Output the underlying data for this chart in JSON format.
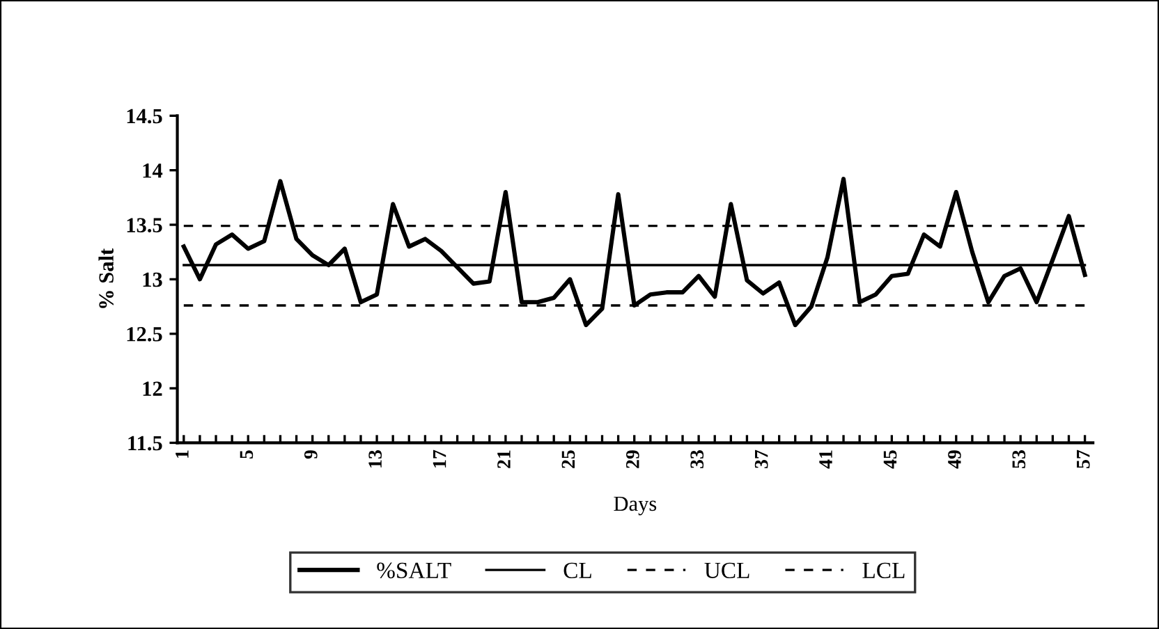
{
  "chart_data": {
    "type": "line",
    "xlabel": "Days",
    "ylabel": "% Salt",
    "categories": [
      "1",
      null,
      null,
      null,
      "5",
      null,
      null,
      null,
      "9",
      null,
      null,
      null,
      "13",
      null,
      null,
      null,
      "17",
      null,
      null,
      null,
      "21",
      null,
      null,
      null,
      "25",
      null,
      null,
      null,
      "29",
      null,
      null,
      null,
      "33",
      null,
      null,
      null,
      "37",
      null,
      null,
      null,
      "41",
      null,
      null,
      null,
      "45",
      null,
      null,
      null,
      "49",
      null,
      null,
      null,
      "53",
      null,
      null,
      null,
      "57"
    ],
    "series": [
      {
        "name": "%SALT",
        "color": "#000000",
        "line_style": "solid",
        "values": [
          13.3,
          13.0,
          13.32,
          13.41,
          13.28,
          13.35,
          13.9,
          13.37,
          13.22,
          13.13,
          13.28,
          12.79,
          12.86,
          13.69,
          13.3,
          13.37,
          13.26,
          13.11,
          12.96,
          12.98,
          13.8,
          12.79,
          12.79,
          12.83,
          13.0,
          12.58,
          12.73,
          13.78,
          12.76,
          12.86,
          12.88,
          12.88,
          13.03,
          12.84,
          13.69,
          12.99,
          12.87,
          12.97,
          12.58,
          12.75,
          13.2,
          13.92,
          12.79,
          12.86,
          13.03,
          13.05,
          13.41,
          13.3,
          13.8,
          13.25,
          12.79,
          13.03,
          13.1,
          12.79,
          13.18,
          13.58,
          13.04
        ]
      },
      {
        "name": "CL",
        "color": "#000000",
        "line_style": "solid",
        "values": [
          13.13,
          13.13,
          13.13,
          13.13,
          13.13,
          13.13,
          13.13,
          13.13,
          13.13,
          13.13,
          13.13,
          13.13,
          13.13,
          13.13,
          13.13,
          13.13,
          13.13,
          13.13,
          13.13,
          13.13,
          13.13,
          13.13,
          13.13,
          13.13,
          13.13,
          13.13,
          13.13,
          13.13,
          13.13,
          13.13,
          13.13,
          13.13,
          13.13,
          13.13,
          13.13,
          13.13,
          13.13,
          13.13,
          13.13,
          13.13,
          13.13,
          13.13,
          13.13,
          13.13,
          13.13,
          13.13,
          13.13,
          13.13,
          13.13,
          13.13,
          13.13,
          13.13,
          13.13,
          13.13,
          13.13,
          13.13,
          13.13
        ]
      },
      {
        "name": "UCL",
        "color": "#000000",
        "line_style": "dashed",
        "values": [
          13.49,
          13.49,
          13.49,
          13.49,
          13.49,
          13.49,
          13.49,
          13.49,
          13.49,
          13.49,
          13.49,
          13.49,
          13.49,
          13.49,
          13.49,
          13.49,
          13.49,
          13.49,
          13.49,
          13.49,
          13.49,
          13.49,
          13.49,
          13.49,
          13.49,
          13.49,
          13.49,
          13.49,
          13.49,
          13.49,
          13.49,
          13.49,
          13.49,
          13.49,
          13.49,
          13.49,
          13.49,
          13.49,
          13.49,
          13.49,
          13.49,
          13.49,
          13.49,
          13.49,
          13.49,
          13.49,
          13.49,
          13.49,
          13.49,
          13.49,
          13.49,
          13.49,
          13.49,
          13.49,
          13.49,
          13.49,
          13.49
        ]
      },
      {
        "name": "LCL",
        "color": "#000000",
        "line_style": "dashed",
        "values": [
          12.76,
          12.76,
          12.76,
          12.76,
          12.76,
          12.76,
          12.76,
          12.76,
          12.76,
          12.76,
          12.76,
          12.76,
          12.76,
          12.76,
          12.76,
          12.76,
          12.76,
          12.76,
          12.76,
          12.76,
          12.76,
          12.76,
          12.76,
          12.76,
          12.76,
          12.76,
          12.76,
          12.76,
          12.76,
          12.76,
          12.76,
          12.76,
          12.76,
          12.76,
          12.76,
          12.76,
          12.76,
          12.76,
          12.76,
          12.76,
          12.76,
          12.76,
          12.76,
          12.76,
          12.76,
          12.76,
          12.76,
          12.76,
          12.76,
          12.76,
          12.76,
          12.76,
          12.76,
          12.76,
          12.76,
          12.76,
          12.76
        ]
      }
    ],
    "ylim": [
      11.5,
      14.5
    ],
    "yticks": [
      11.5,
      12,
      12.5,
      13,
      13.5,
      14,
      14.5
    ],
    "grid": false,
    "legend": "bottom",
    "marker": "none"
  }
}
